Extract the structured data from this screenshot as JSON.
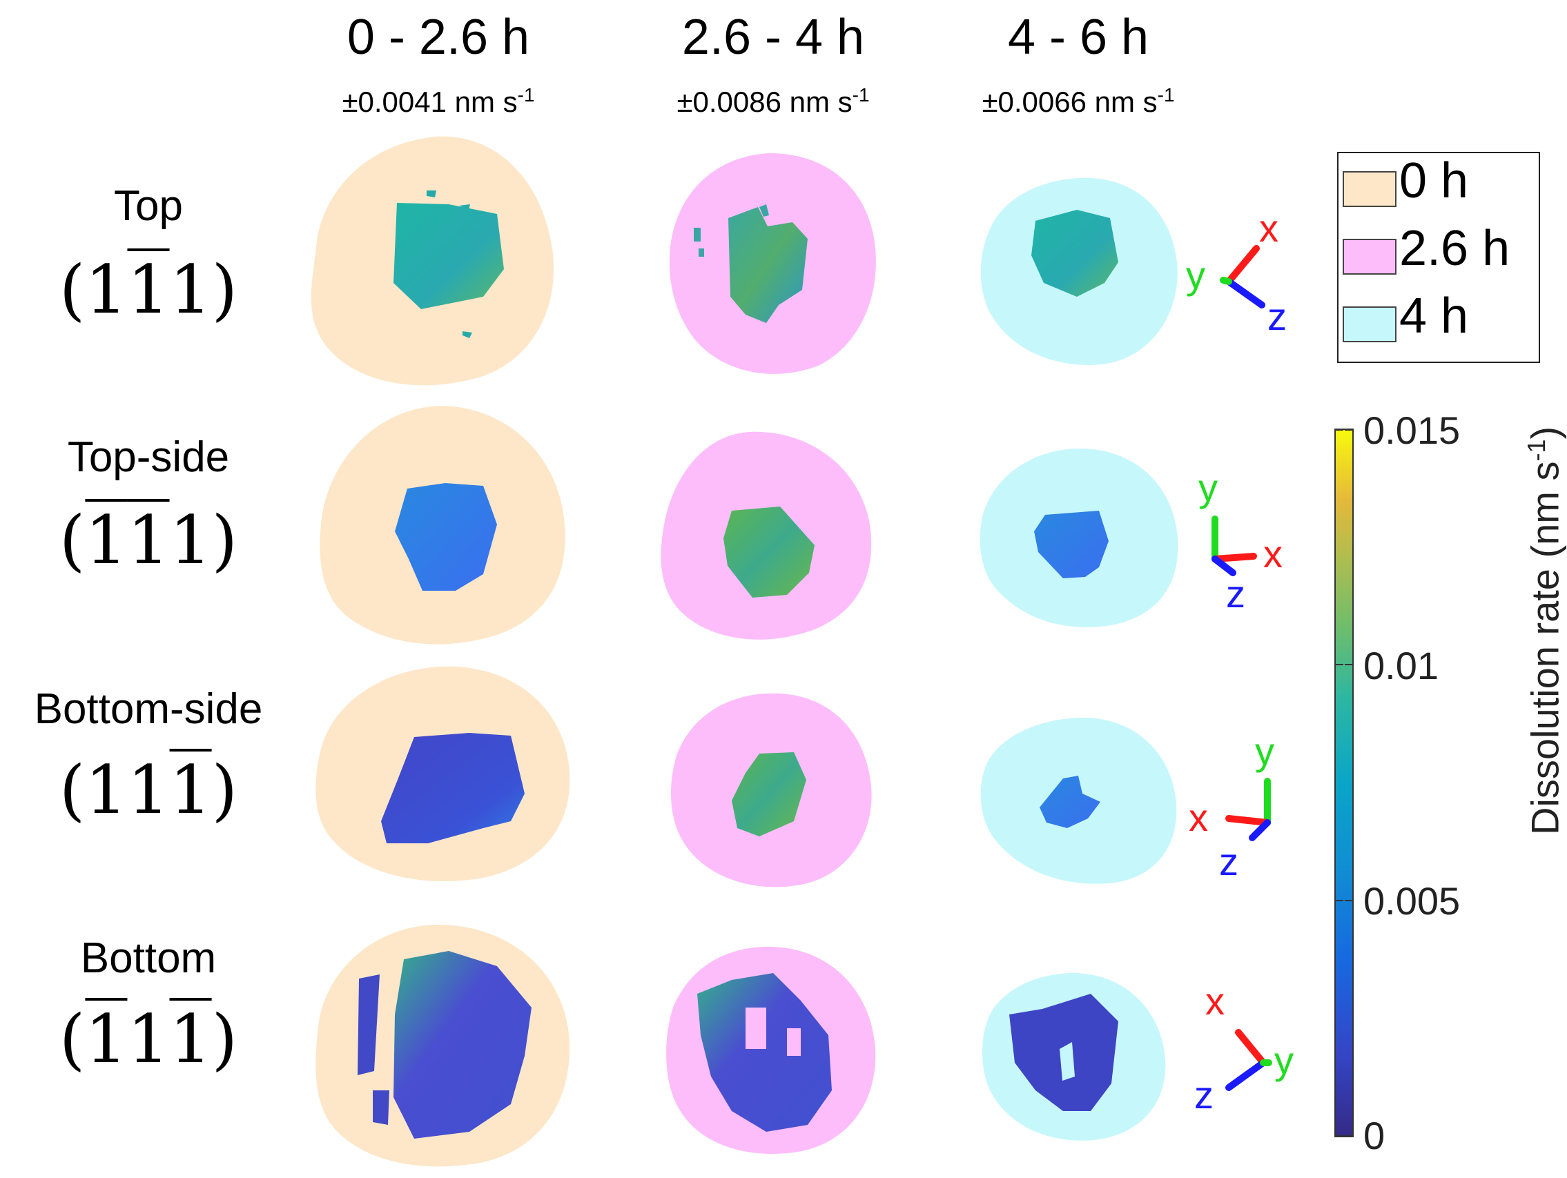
{
  "columns": [
    {
      "title": "0 - 2.6 h",
      "uncertainty": "±0.0041 nm s",
      "exp": "-1"
    },
    {
      "title": "2.6 - 4 h",
      "uncertainty": "±0.0086 nm s",
      "exp": "-1"
    },
    {
      "title": "4 - 6 h",
      "uncertainty": "±0.0066 nm s",
      "exp": "-1"
    }
  ],
  "rows": [
    {
      "label": "Top",
      "miller": [
        "1",
        "1",
        "1"
      ],
      "overline": [
        false,
        true,
        false
      ]
    },
    {
      "label": "Top-side",
      "miller": [
        "1",
        "1",
        "1"
      ],
      "overline": [
        true,
        true,
        false
      ]
    },
    {
      "label": "Bottom-side",
      "miller": [
        "1",
        "1",
        "1"
      ],
      "overline": [
        false,
        false,
        true
      ]
    },
    {
      "label": "Bottom",
      "miller": [
        "1",
        "1",
        "1"
      ],
      "overline": [
        true,
        false,
        true
      ]
    }
  ],
  "legend": [
    {
      "label": "0 h",
      "color": "#fde7c8"
    },
    {
      "label": "2.6 h",
      "color": "#fdbdfa"
    },
    {
      "label": "4 h",
      "color": "#c6f7fb"
    }
  ],
  "colorbar": {
    "label": "Dissolution rate (nm s",
    "label_exp": "-1",
    "label_close": ")",
    "min": 0,
    "max": 0.015,
    "ticks": [
      "0",
      "0.005",
      "0.01",
      "0.015"
    ],
    "colormap": "parula"
  },
  "axes_labels": {
    "x": "x",
    "y": "y",
    "z": "z"
  },
  "axis_colors": {
    "x": "#ff1a1a",
    "y": "#1fdc1f",
    "z": "#1a1aff"
  },
  "shell_colors": [
    "#fde7c8",
    "#fdbdfa",
    "#c6f7fb"
  ]
}
